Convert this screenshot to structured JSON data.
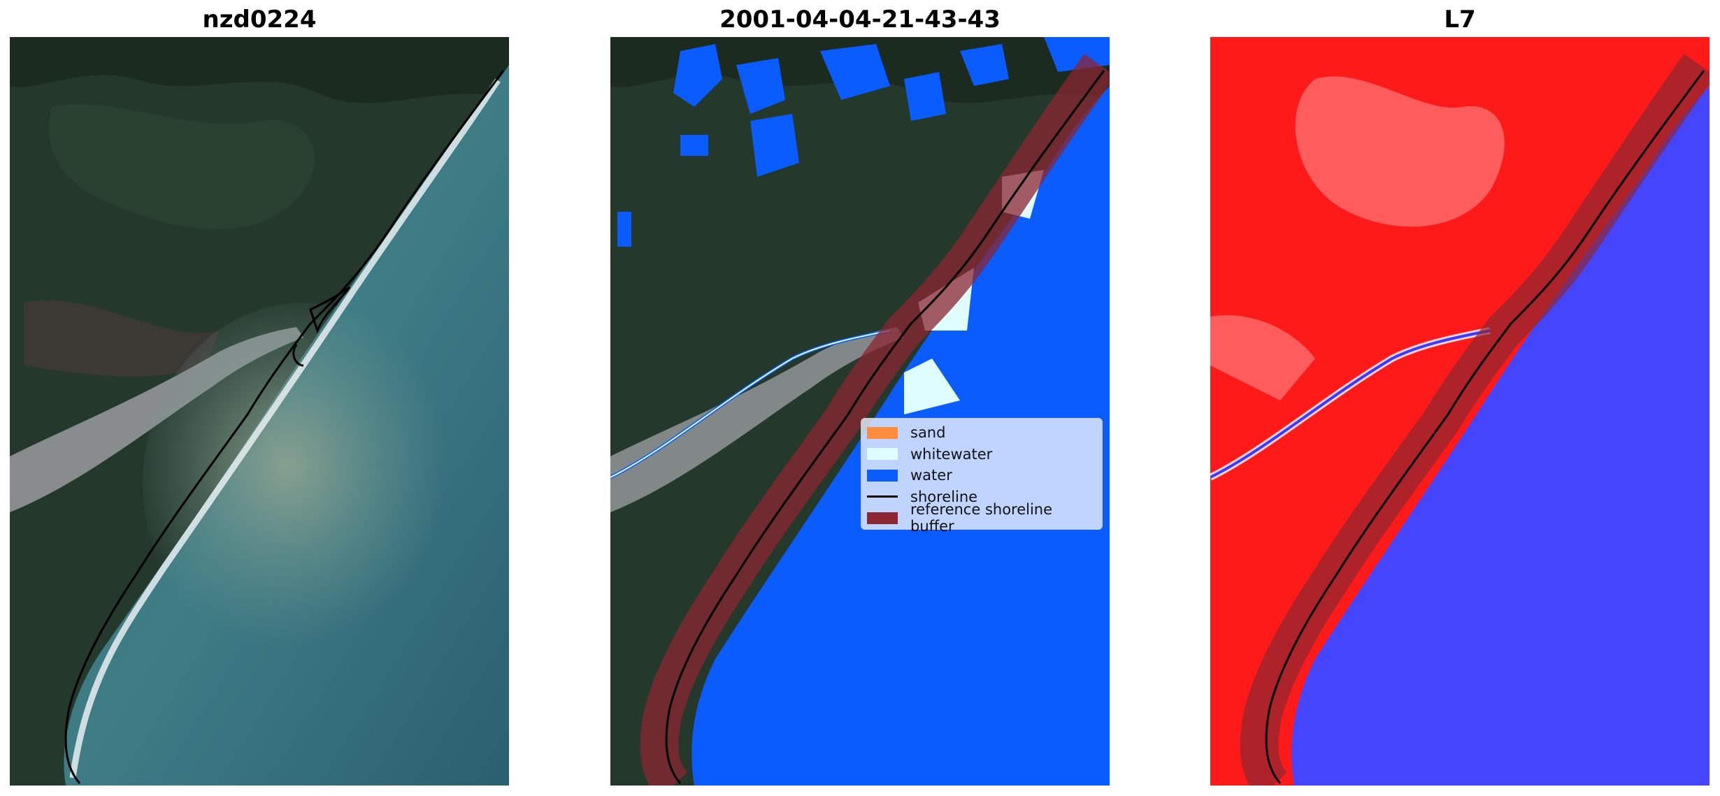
{
  "panels": [
    {
      "title": "nzd0224"
    },
    {
      "title": "2001-04-04-21-43-43"
    },
    {
      "title": "L7"
    }
  ],
  "legend": {
    "items": [
      {
        "label": "sand",
        "color": "#ff8b3d",
        "kind": "patch"
      },
      {
        "label": "whitewater",
        "color": "#dffcff",
        "kind": "patch"
      },
      {
        "label": "water",
        "color": "#0a5cff",
        "kind": "patch"
      },
      {
        "label": "shoreline",
        "color": "#000000",
        "kind": "line"
      },
      {
        "label": "reference shoreline buffer",
        "color": "#8b2632",
        "kind": "patch"
      }
    ]
  },
  "colors": {
    "water_class": "#0a5cff",
    "whitewater_class": "#dffcff",
    "buffer": "#8b2632",
    "land_index": "#ff1a1a",
    "water_index": "#3a3aff"
  }
}
